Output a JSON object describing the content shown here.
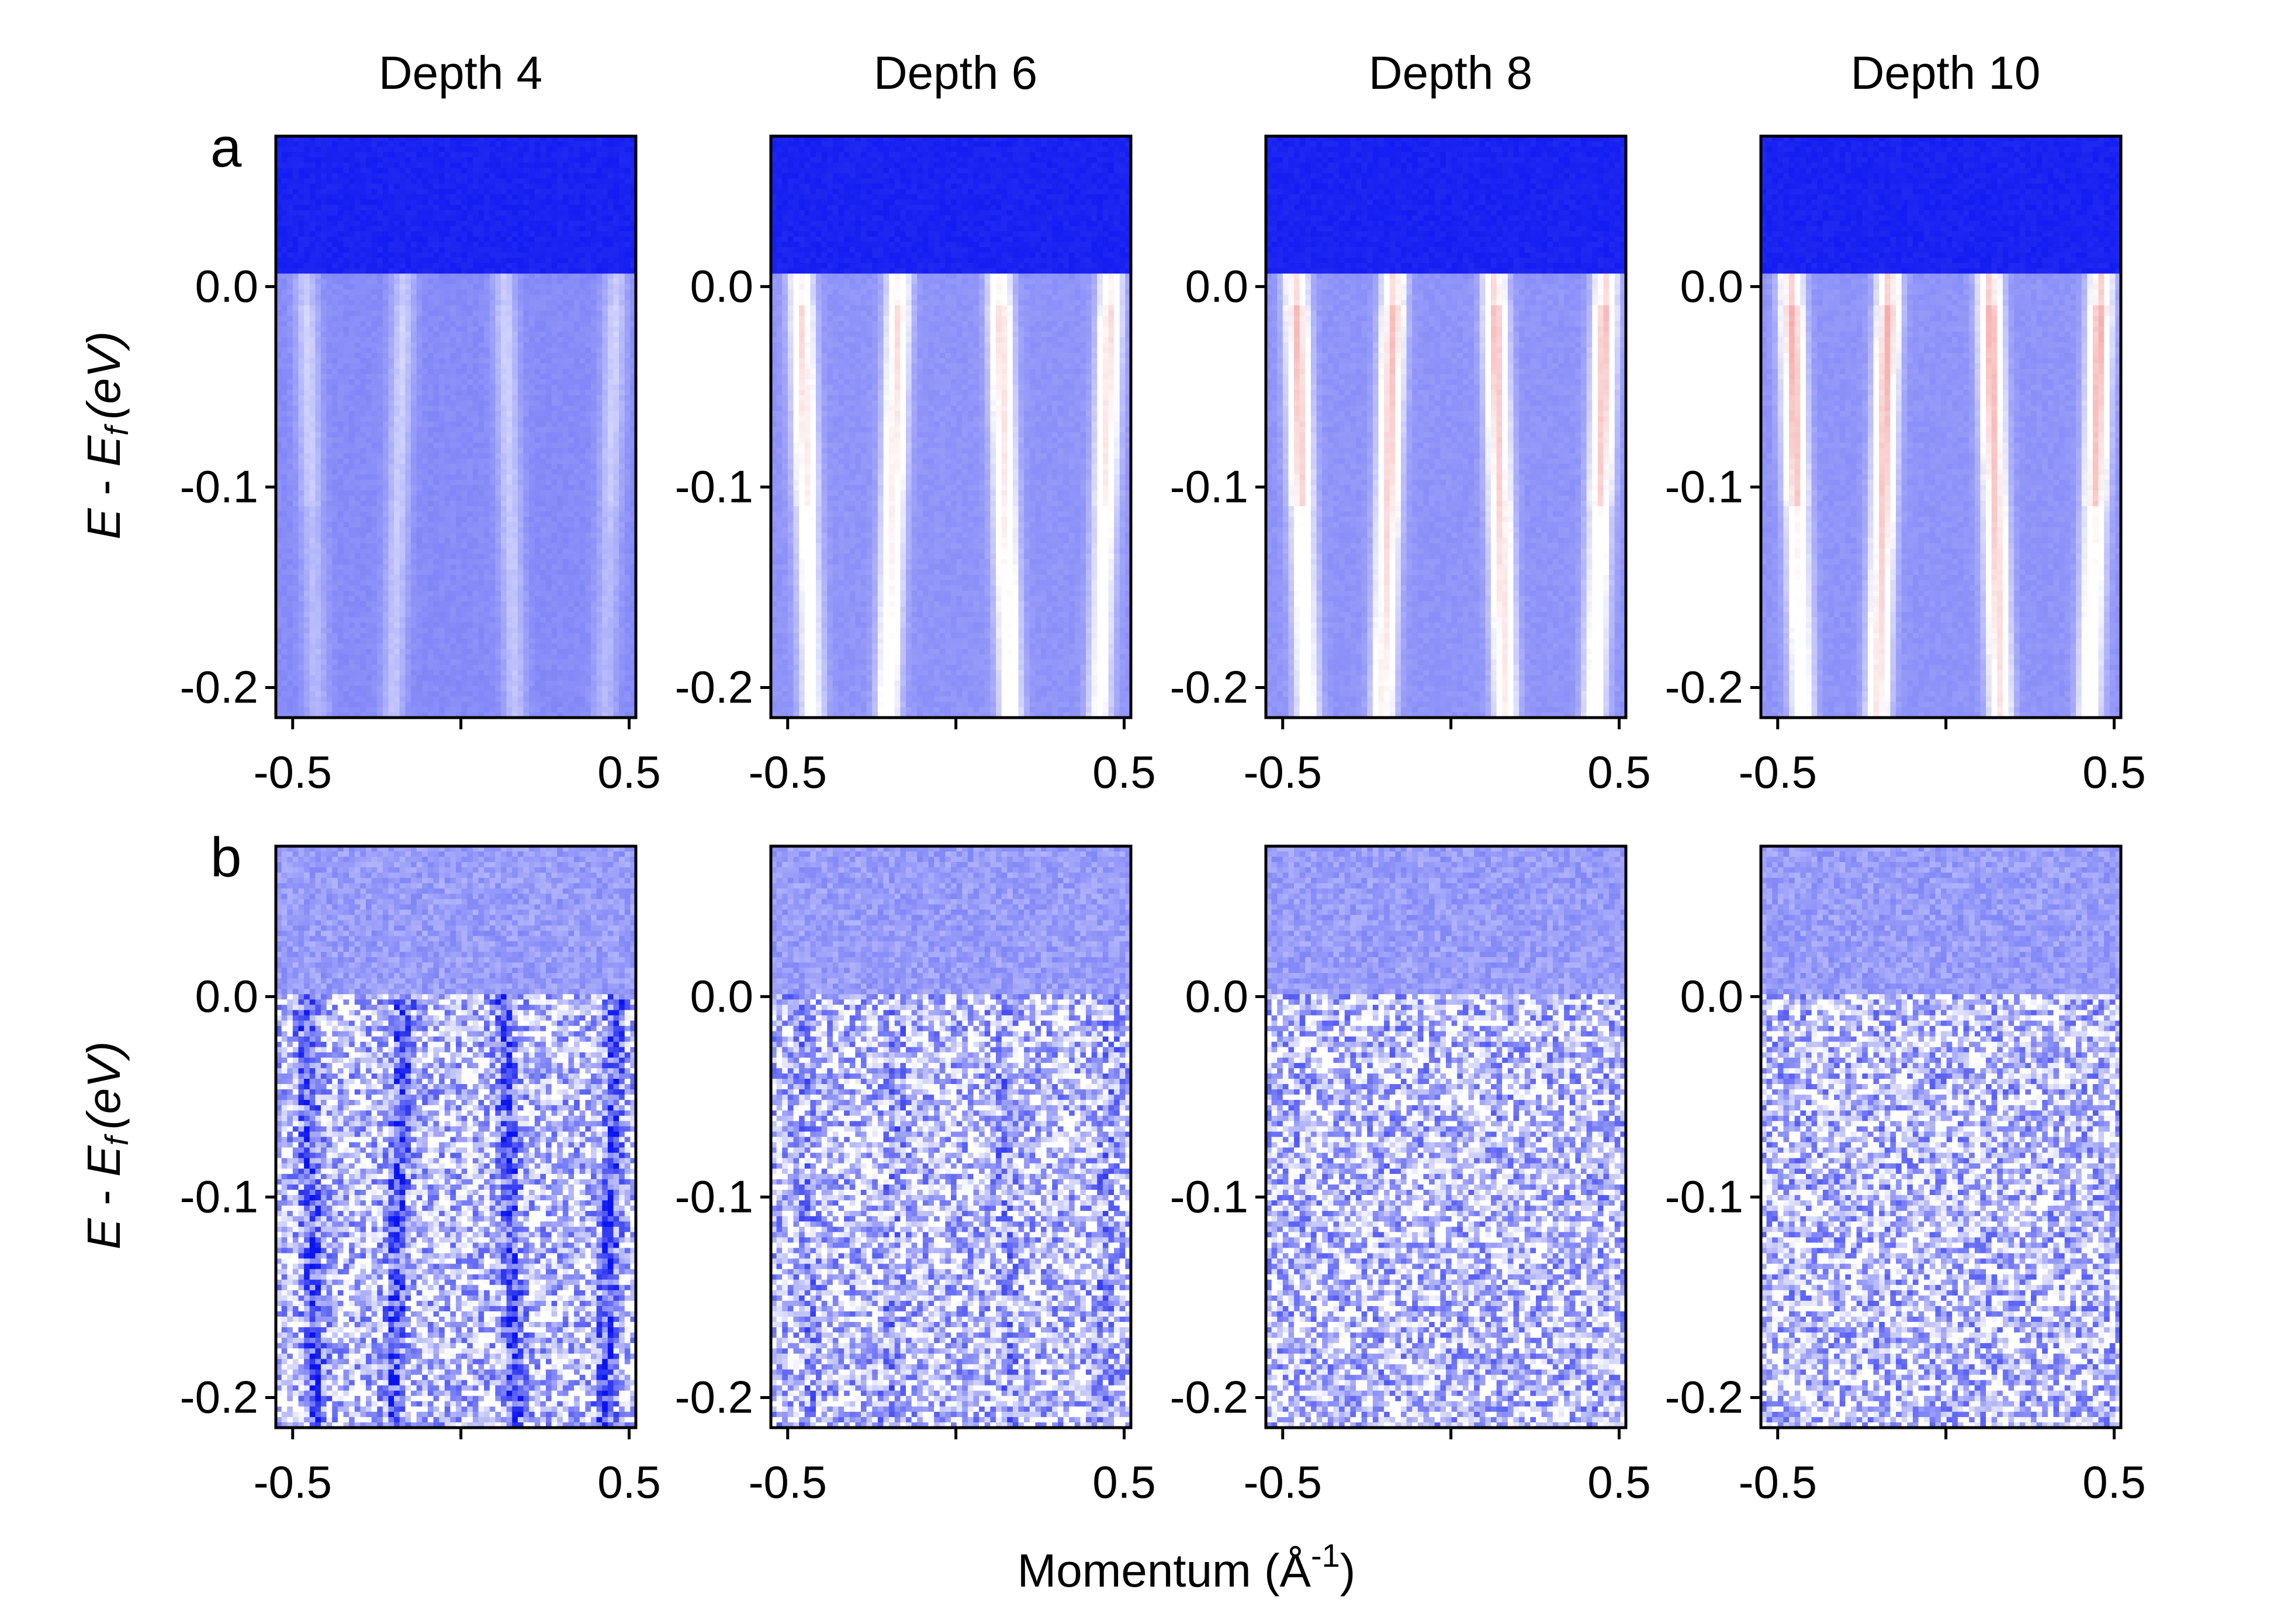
{
  "figure": {
    "column_titles": [
      "Depth 4",
      "Depth 6",
      "Depth 8",
      "Depth 10"
    ],
    "row_labels": [
      "a",
      "b"
    ],
    "xlabel": {
      "main": "Momentum (Å",
      "superscript": "-1",
      "close": ")"
    },
    "ylabel": {
      "e": "E",
      "dash": " - ",
      "ef": "E",
      "sub": "f",
      "unit": "(eV)"
    }
  },
  "chart_data": {
    "type": "heatmap",
    "description_free": true,
    "colormap": {
      "low": "#0a14f0",
      "mid": "#ffffff",
      "high": "#f08080"
    },
    "x_axis": {
      "label": "Momentum (Å-1)",
      "range": [
        -0.55,
        0.52
      ],
      "ticks": [
        -0.5,
        0,
        0.5
      ],
      "tick_labels": [
        "-0.5",
        "",
        "0.5"
      ]
    },
    "y_axis": {
      "label": "E - Ef (eV)",
      "range": [
        -0.215,
        0.075
      ],
      "ticks": [
        0.0,
        -0.1,
        -0.2
      ],
      "tick_labels": [
        "0.0",
        "-0.1",
        "-0.2"
      ]
    },
    "columns": [
      {
        "title": "Depth 4",
        "depth": 4
      },
      {
        "title": "Depth 6",
        "depth": 6
      },
      {
        "title": "Depth 8",
        "depth": 8
      },
      {
        "title": "Depth 10",
        "depth": 10
      }
    ],
    "rows": [
      {
        "label": "a",
        "kind": "spectral intensity",
        "band_positions_k": [
          -0.46,
          -0.17,
          0.13,
          0.46
        ],
        "panels": [
          {
            "depth": 4,
            "band_peak": 0.45,
            "background": 0.28
          },
          {
            "depth": 6,
            "band_peak": 0.78,
            "background": 0.3
          },
          {
            "depth": 8,
            "band_peak": 0.85,
            "background": 0.3
          },
          {
            "depth": 10,
            "band_peak": 0.88,
            "background": 0.3
          }
        ]
      },
      {
        "label": "b",
        "kind": "noisy measurement",
        "band_positions_k": [
          -0.46,
          -0.17,
          0.13,
          0.46
        ],
        "panels": [
          {
            "depth": 4,
            "band_contrast": 0.55,
            "noise": 0.45
          },
          {
            "depth": 6,
            "band_contrast": 0.18,
            "noise": 0.45
          },
          {
            "depth": 8,
            "band_contrast": 0.04,
            "noise": 0.45
          },
          {
            "depth": 10,
            "band_contrast": 0.02,
            "noise": 0.45
          }
        ]
      }
    ]
  }
}
